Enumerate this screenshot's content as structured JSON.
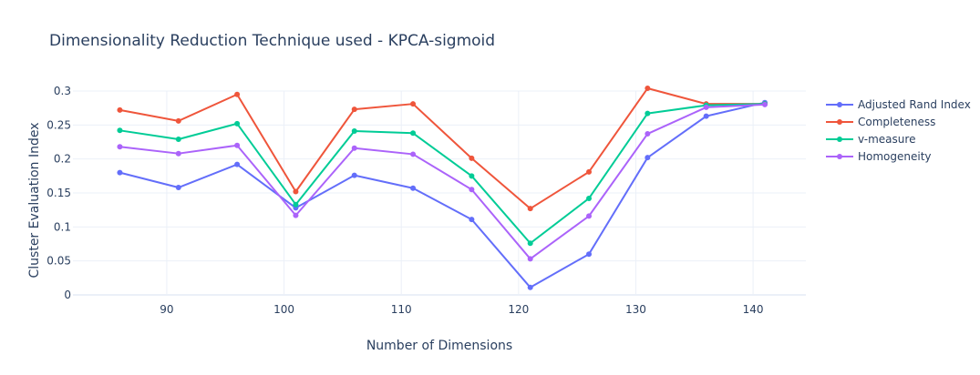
{
  "chart_data": {
    "type": "line",
    "title": "Dimensionality Reduction Technique used - KPCA-sigmoid",
    "xlabel": "Number of Dimensions",
    "ylabel": "Cluster Evaluation Index",
    "x": [
      86,
      91,
      96,
      101,
      106,
      111,
      116,
      121,
      126,
      131,
      136,
      141
    ],
    "xlim": [
      82,
      144.5
    ],
    "ylim": [
      0,
      0.3
    ],
    "xticks": [
      90,
      100,
      110,
      120,
      130,
      140
    ],
    "yticks": [
      0,
      0.05,
      0.1,
      0.15,
      0.2,
      0.25,
      0.3
    ],
    "ytick_labels": [
      "0",
      "0.05",
      "0.1",
      "0.15",
      "0.2",
      "0.25",
      "0.3"
    ],
    "grid": true,
    "legend_position": "top-right",
    "series": [
      {
        "name": "Adjusted Rand Index",
        "color": "#636efa",
        "values": [
          0.18,
          0.158,
          0.192,
          0.128,
          0.176,
          0.157,
          0.111,
          0.011,
          0.06,
          0.202,
          0.263,
          0.283
        ]
      },
      {
        "name": "Completeness",
        "color": "#ef553b",
        "values": [
          0.272,
          0.256,
          0.295,
          0.152,
          0.273,
          0.281,
          0.201,
          0.127,
          0.181,
          0.304,
          0.281,
          0.281
        ]
      },
      {
        "name": "v-measure",
        "color": "#00cc96",
        "values": [
          0.242,
          0.229,
          0.252,
          0.133,
          0.241,
          0.238,
          0.175,
          0.076,
          0.142,
          0.267,
          0.279,
          0.281
        ]
      },
      {
        "name": "Homogeneity",
        "color": "#ab63fa",
        "values": [
          0.218,
          0.208,
          0.22,
          0.117,
          0.216,
          0.207,
          0.155,
          0.053,
          0.116,
          0.237,
          0.276,
          0.28
        ]
      }
    ]
  }
}
